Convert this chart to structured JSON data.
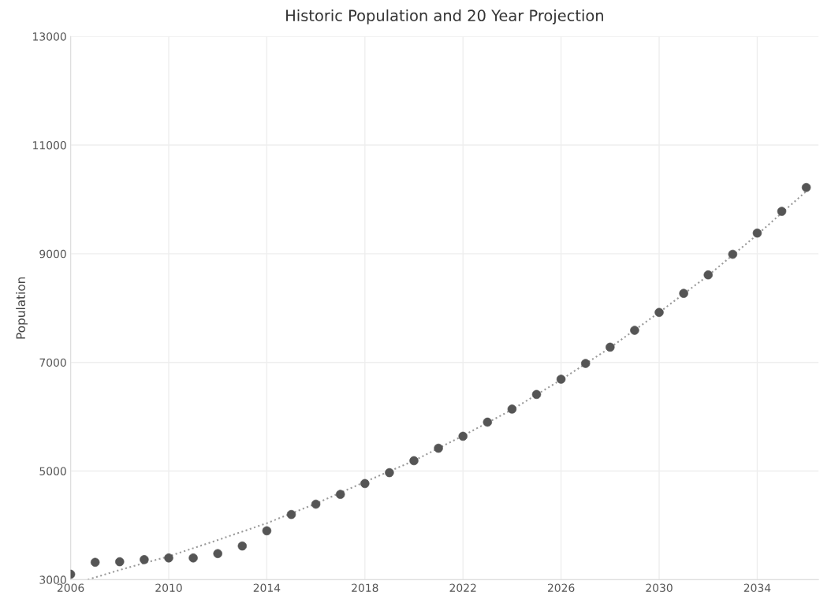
{
  "chart_data": {
    "type": "scatter",
    "title": "Historic Population and 20 Year Projection",
    "ylabel": "Population",
    "x": [
      2006,
      2007,
      2008,
      2009,
      2010,
      2011,
      2012,
      2013,
      2014,
      2015,
      2016,
      2017,
      2018,
      2019,
      2020,
      2021,
      2022,
      2023,
      2024,
      2025,
      2026,
      2027,
      2028,
      2029,
      2030,
      2031,
      2032,
      2033,
      2034,
      2035,
      2036
    ],
    "series": [
      {
        "color": "#555555",
        "marker": "circle",
        "values": [
          3100,
          3320,
          3330,
          3370,
          3400,
          3400,
          3480,
          3620,
          3900,
          4200,
          4390,
          4570,
          4770,
          4970,
          5190,
          5420,
          5640,
          5900,
          6140,
          6410,
          6690,
          6980,
          7280,
          7590,
          7920,
          8270,
          8610,
          8990,
          9380,
          9780,
          10220
        ]
      },
      {
        "type": "line",
        "color": "#9a9a9a",
        "line_style": "dotted",
        "marker": "none",
        "x": [
          2006.7,
          2008,
          2010,
          2012,
          2014,
          2016,
          2018,
          2020,
          2022,
          2024,
          2026,
          2028,
          2030,
          2032,
          2034,
          2036
        ],
        "values": [
          3000,
          3180,
          3430,
          3730,
          4040,
          4400,
          4800,
          5190,
          5650,
          6130,
          6680,
          7270,
          7920,
          8600,
          9350,
          10150
        ]
      }
    ],
    "xlim": [
      2006,
      2036.5
    ],
    "xticks": [
      2006,
      2010,
      2014,
      2018,
      2022,
      2026,
      2030,
      2034
    ],
    "ylim": [
      3000,
      13000
    ],
    "yticks": [
      3000,
      5000,
      7000,
      9000,
      11000,
      13000
    ],
    "grid": true,
    "legend": false
  }
}
